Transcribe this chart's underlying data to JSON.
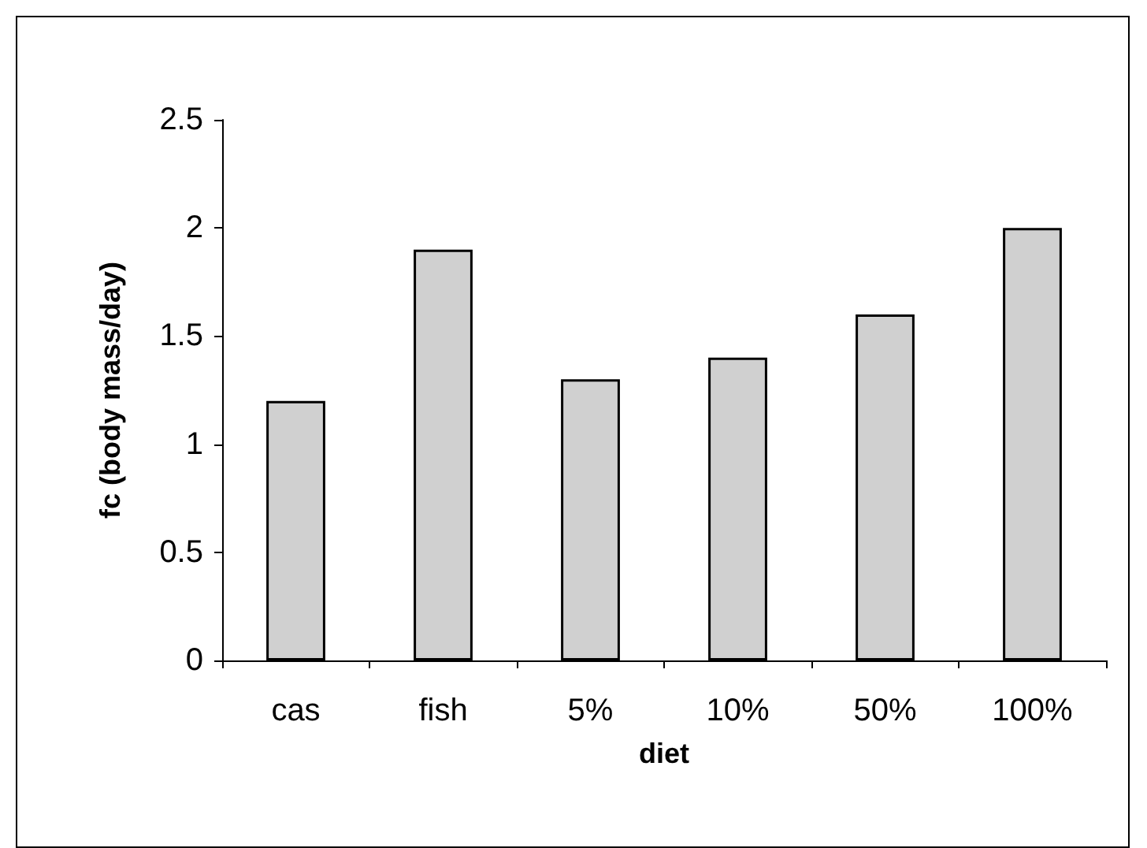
{
  "chart_data": {
    "type": "bar",
    "xlabel": "diet",
    "ylabel": "fc (body mass/day)",
    "categories": [
      "cas",
      "fish",
      "5%",
      "10%",
      "50%",
      "100%"
    ],
    "values": [
      1.2,
      1.9,
      1.3,
      1.4,
      1.6,
      2.0
    ],
    "color": "#d0d0d0",
    "ylim": [
      0,
      2.5
    ],
    "yticks": [
      0,
      0.5,
      1,
      1.5,
      2,
      2.5
    ]
  }
}
